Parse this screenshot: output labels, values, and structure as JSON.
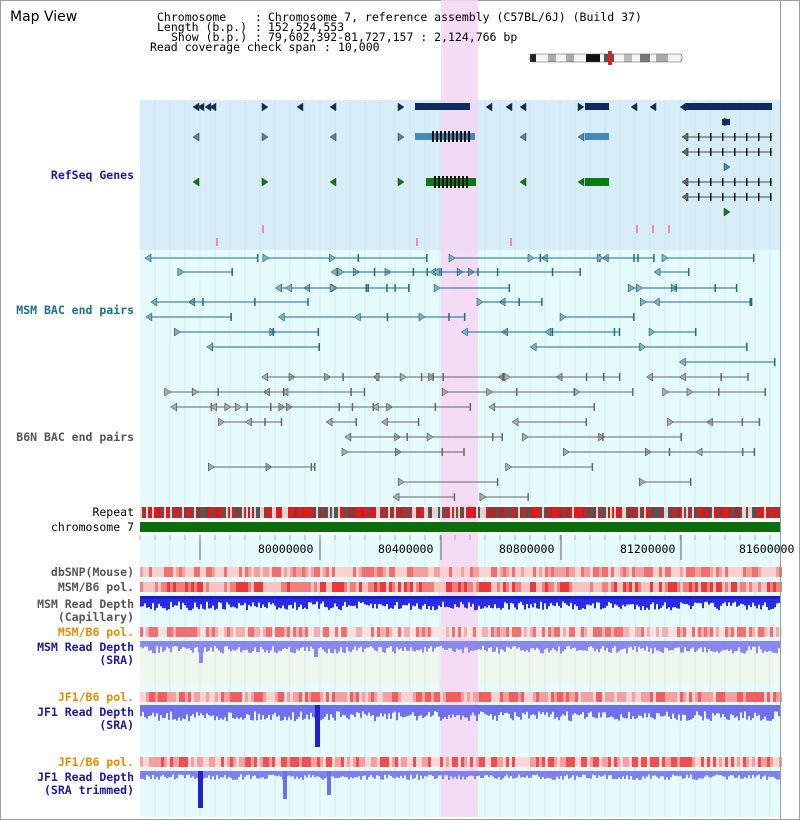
{
  "title": "Map View",
  "info": {
    "chromosome_label": "Chromosome",
    "chromosome_value": "Chromosome 7, reference assembly (C57BL/6J) (Build 37)",
    "length_label": "Length (b.p.)",
    "length_value": "152,524,553",
    "show_label": "Show (b.p.)",
    "show_value": "79,602,392-81,727,157 : 2,124,766 bp",
    "coverage_label": "Read coverage check span",
    "coverage_value": "10,000"
  },
  "tracks": {
    "refseq": "RefSeq Genes",
    "msm_bac": "MSM BAC end pairs",
    "b6n_bac": "B6N BAC end pairs",
    "repeat": "Repeat",
    "chromosome": "chromosome 7",
    "dbsnp": "dbSNP(Mouse)",
    "msm_b6_pol_1": "MSM/B6 pol.",
    "msm_read_depth_cap_1": "MSM Read Depth",
    "msm_read_depth_cap_2": "(Capillary)",
    "msm_b6_pol_2": "MSM/B6 pol.",
    "msm_read_depth_sra_1": "MSM Read Depth",
    "msm_read_depth_sra_2": "(SRA)",
    "jf1_b6_pol_1": "JF1/B6 pol.",
    "jf1_read_depth_1": "JF1 Read Depth",
    "jf1_read_depth_2": "(SRA)",
    "jf1_b6_pol_2": "JF1/B6 pol.",
    "jf1_trimmed_1": "JF1 Read Depth",
    "jf1_trimmed_2": "(SRA trimmed)"
  },
  "axis": {
    "ticks": [
      "80000000",
      "80400000",
      "80800000",
      "81200000",
      "81600000"
    ]
  },
  "colors": {
    "refseq_bg": "#d7eef8",
    "track_bg": "#e6fbfb",
    "highlight": "#f6d6f3",
    "gene_dark": "#0f2c5e",
    "gene_mid": "#4688b7",
    "gene_green": "#0c7a12",
    "bac_msm": "#1d6a8a",
    "bac_b6n": "#666666",
    "chrom_green": "#0b6e0b",
    "depth_blue": "#2222ee",
    "depth_light": "#7d7df2"
  }
}
